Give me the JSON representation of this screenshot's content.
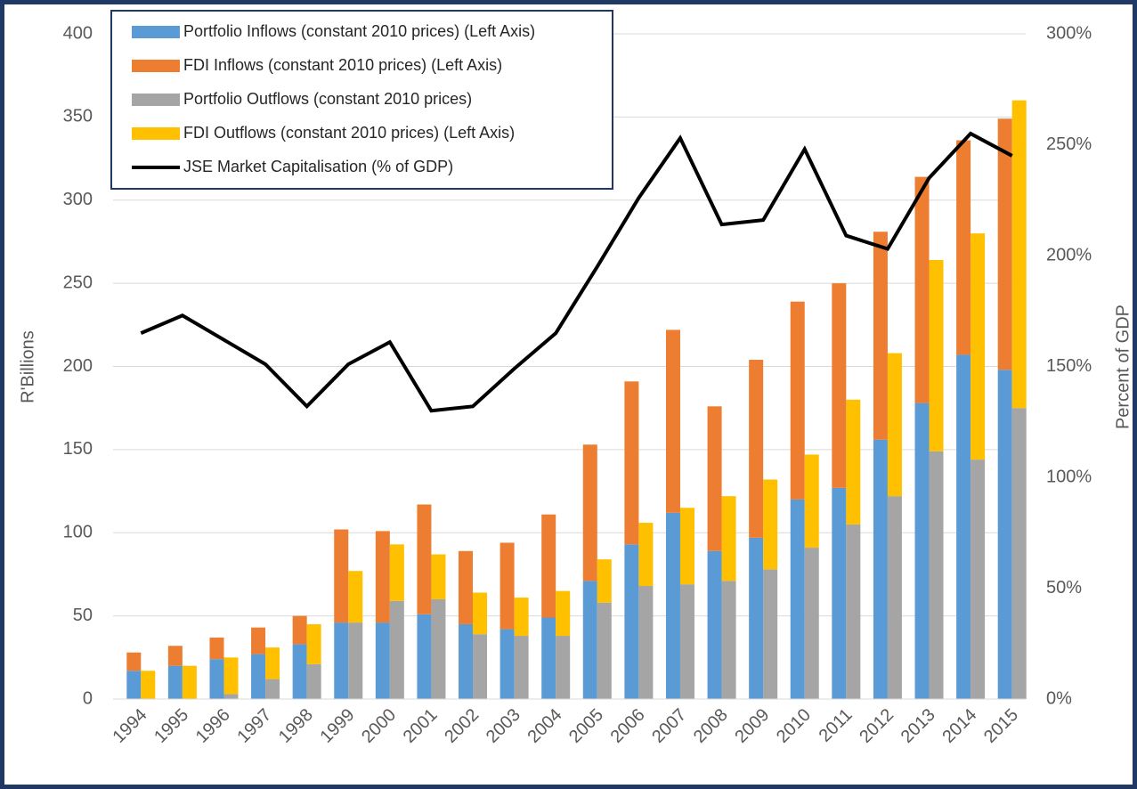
{
  "chart_data": {
    "type": "bar",
    "y_label": "R'Billions",
    "y2_label": "Percent of GDP",
    "categories": [
      "1994",
      "1995",
      "1996",
      "1997",
      "1998",
      "1999",
      "2000",
      "2001",
      "2002",
      "2003",
      "2004",
      "2005",
      "2006",
      "2007",
      "2008",
      "2009",
      "2010",
      "2011",
      "2012",
      "2013",
      "2014",
      "2015"
    ],
    "series": [
      {
        "name": "Portfolio Inflows (constant 2010 prices) (Left Axis)",
        "color": "#5b9bd5",
        "stack": "inflows",
        "values": [
          17,
          20,
          24,
          27,
          33,
          46,
          46,
          51,
          45,
          42,
          49,
          71,
          93,
          112,
          89,
          97,
          120,
          127,
          156,
          178,
          207,
          198
        ]
      },
      {
        "name": "FDI Inflows (constant 2010 prices) (Left Axis)",
        "color": "#ed7d31",
        "stack": "inflows",
        "values": [
          11,
          12,
          13,
          16,
          17,
          56,
          55,
          66,
          44,
          52,
          62,
          82,
          98,
          110,
          87,
          107,
          119,
          123,
          125,
          136,
          129,
          151
        ]
      },
      {
        "name": "Portfolio Outflows (constant 2010 prices)",
        "color": "#a5a5a5",
        "stack": "outflows",
        "values": [
          0,
          0,
          3,
          12,
          21,
          46,
          59,
          60,
          39,
          38,
          38,
          58,
          68,
          69,
          71,
          78,
          91,
          105,
          122,
          149,
          144,
          175
        ]
      },
      {
        "name": "FDI Outflows (constant 2010 prices) (Left Axis)",
        "color": "#ffc000",
        "stack": "outflows",
        "values": [
          17,
          20,
          22,
          19,
          24,
          31,
          34,
          27,
          25,
          23,
          27,
          26,
          38,
          46,
          51,
          54,
          56,
          75,
          86,
          115,
          136,
          185
        ]
      },
      {
        "name": "JSE Market Capitalisation (% of GDP)",
        "color": "#000000",
        "type": "line",
        "axis": "y2",
        "values": [
          165,
          173,
          162,
          151,
          132,
          151,
          161,
          130,
          132,
          149,
          165,
          195,
          226,
          253,
          214,
          216,
          248,
          209,
          203,
          235,
          255,
          245
        ]
      }
    ],
    "ylim": [
      0,
      400
    ],
    "yticks": [
      0,
      50,
      100,
      150,
      200,
      250,
      300,
      350,
      400
    ],
    "y2lim": [
      0,
      300
    ],
    "y2ticks": [
      {
        "value": 0,
        "label": "0%"
      },
      {
        "value": 50,
        "label": "50%"
      },
      {
        "value": 100,
        "label": "100%"
      },
      {
        "value": 150,
        "label": "150%"
      },
      {
        "value": 200,
        "label": "200%"
      },
      {
        "value": 250,
        "label": "250%"
      },
      {
        "value": 300,
        "label": "300%"
      }
    ],
    "grid": true,
    "legend": "top-left"
  }
}
